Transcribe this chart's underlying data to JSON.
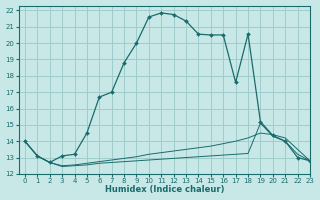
{
  "xlabel": "Humidex (Indice chaleur)",
  "bg_color": "#c8e8e8",
  "grid_color": "#a0cccc",
  "line_color": "#1a6b6b",
  "xlim": [
    -0.5,
    23
  ],
  "ylim": [
    12,
    22.3
  ],
  "xticks": [
    0,
    1,
    2,
    3,
    4,
    5,
    6,
    7,
    8,
    9,
    10,
    11,
    12,
    13,
    14,
    15,
    16,
    17,
    18,
    19,
    20,
    21,
    22,
    23
  ],
  "yticks": [
    12,
    13,
    14,
    15,
    16,
    17,
    18,
    19,
    20,
    21,
    22
  ],
  "series1_x": [
    0,
    1,
    2,
    3,
    4,
    5,
    6,
    7,
    8,
    9,
    10,
    11,
    12,
    13,
    14,
    15,
    16,
    17,
    18,
    19,
    20,
    21,
    22,
    23
  ],
  "series1_y": [
    14.0,
    13.1,
    12.7,
    13.1,
    13.2,
    14.5,
    16.7,
    17.0,
    18.8,
    20.0,
    21.6,
    21.85,
    21.75,
    21.35,
    20.55,
    20.5,
    20.5,
    17.6,
    20.55,
    15.2,
    14.35,
    14.0,
    13.0,
    12.8
  ],
  "series2_x": [
    0,
    1,
    2,
    3,
    4,
    5,
    6,
    7,
    8,
    9,
    10,
    11,
    12,
    13,
    14,
    15,
    16,
    17,
    18,
    19,
    20,
    21,
    22,
    23
  ],
  "series2_y": [
    14.0,
    13.1,
    12.7,
    12.5,
    12.55,
    12.65,
    12.75,
    12.85,
    12.95,
    13.05,
    13.2,
    13.3,
    13.4,
    13.5,
    13.6,
    13.7,
    13.85,
    14.0,
    14.2,
    14.5,
    14.4,
    14.2,
    13.5,
    12.8
  ],
  "series3_x": [
    0,
    1,
    2,
    3,
    4,
    5,
    6,
    7,
    8,
    9,
    10,
    11,
    12,
    13,
    14,
    15,
    16,
    17,
    18,
    19,
    20,
    21,
    22,
    23
  ],
  "series3_y": [
    14.0,
    13.1,
    12.7,
    12.45,
    12.5,
    12.55,
    12.65,
    12.7,
    12.75,
    12.8,
    12.85,
    12.9,
    12.95,
    13.0,
    13.05,
    13.1,
    13.15,
    13.2,
    13.25,
    15.1,
    14.3,
    14.0,
    13.2,
    12.8
  ]
}
